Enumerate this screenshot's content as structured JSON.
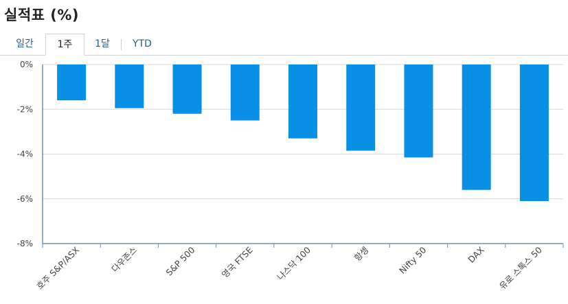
{
  "title": "실적표 (%)",
  "tabs": [
    {
      "label": "일간",
      "active": false
    },
    {
      "label": "1주",
      "active": true
    },
    {
      "label": "1달",
      "active": false
    },
    {
      "label": "YTD",
      "active": false
    }
  ],
  "colors": {
    "bar": "#0a8fe6",
    "grid": "#d9d9d9",
    "axis": "#6e93b5"
  },
  "chart_data": {
    "type": "bar",
    "categories": [
      "호주 S&P/ASX",
      "다우존스",
      "S&P 500",
      "영국 FTSE",
      "나스닥 100",
      "항셍",
      "Nifty 50",
      "DAX",
      "유로 스톡스 50"
    ],
    "values": [
      -1.6,
      -1.95,
      -2.2,
      -2.5,
      -3.3,
      -3.85,
      -4.15,
      -5.6,
      -6.1
    ],
    "ylim": [
      -8,
      0
    ],
    "yticks": [
      0,
      -2,
      -4,
      -6,
      -8
    ],
    "ytick_labels": [
      "0%",
      "-2%",
      "-4%",
      "-6%",
      "-8%"
    ],
    "grid": true,
    "legend": "none"
  }
}
